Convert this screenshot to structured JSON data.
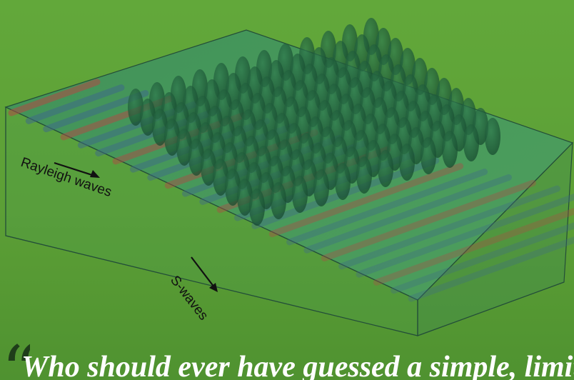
{
  "labels": {
    "rayleigh": "Rayleigh waves",
    "swaves": "S-waves"
  },
  "caption": {
    "quote_glyph": "“",
    "text": "Who should ever have guessed a simple, limited t"
  },
  "colors": {
    "background": "#5fa438",
    "box_top": "#3f8a52",
    "box_edge": "#2c5c45",
    "tree": "#1e5a3a",
    "wave_red": "#b04a45",
    "wave_blue": "#3d6a8a",
    "label_text": "#111111"
  }
}
